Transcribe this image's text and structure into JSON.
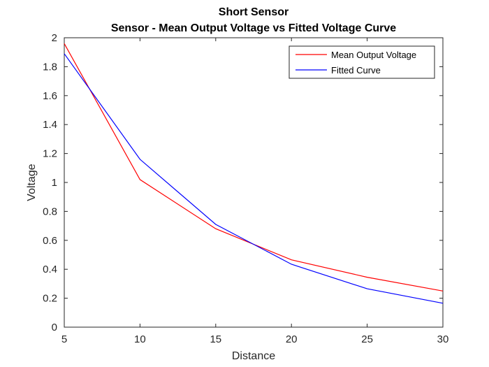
{
  "chart_data": {
    "type": "line",
    "title": "Short Sensor",
    "subtitle": "Sensor - Mean Output Voltage vs Fitted Voltage Curve",
    "xlabel": "Distance",
    "ylabel": "Voltage",
    "xlim": [
      5,
      30
    ],
    "ylim": [
      0,
      2
    ],
    "xticks": [
      5,
      10,
      15,
      20,
      25,
      30
    ],
    "yticks": [
      0,
      0.2,
      0.4,
      0.6,
      0.8,
      1,
      1.2,
      1.4,
      1.6,
      1.8,
      2
    ],
    "ytick_labels": [
      "0",
      "0.2",
      "0.4",
      "0.6",
      "0.8",
      "1",
      "1.2",
      "1.4",
      "1.6",
      "1.8",
      "2"
    ],
    "grid": false,
    "legend_position": "top-right",
    "x": [
      5,
      10,
      15,
      20,
      25,
      30
    ],
    "series": [
      {
        "name": "Mean Output Voltage",
        "color": "#ff0000",
        "values": [
          1.96,
          1.02,
          0.68,
          0.465,
          0.345,
          0.25
        ]
      },
      {
        "name": "Fitted Curve",
        "color": "#0000ff",
        "values": [
          1.89,
          1.16,
          0.71,
          0.435,
          0.265,
          0.165
        ]
      }
    ]
  }
}
